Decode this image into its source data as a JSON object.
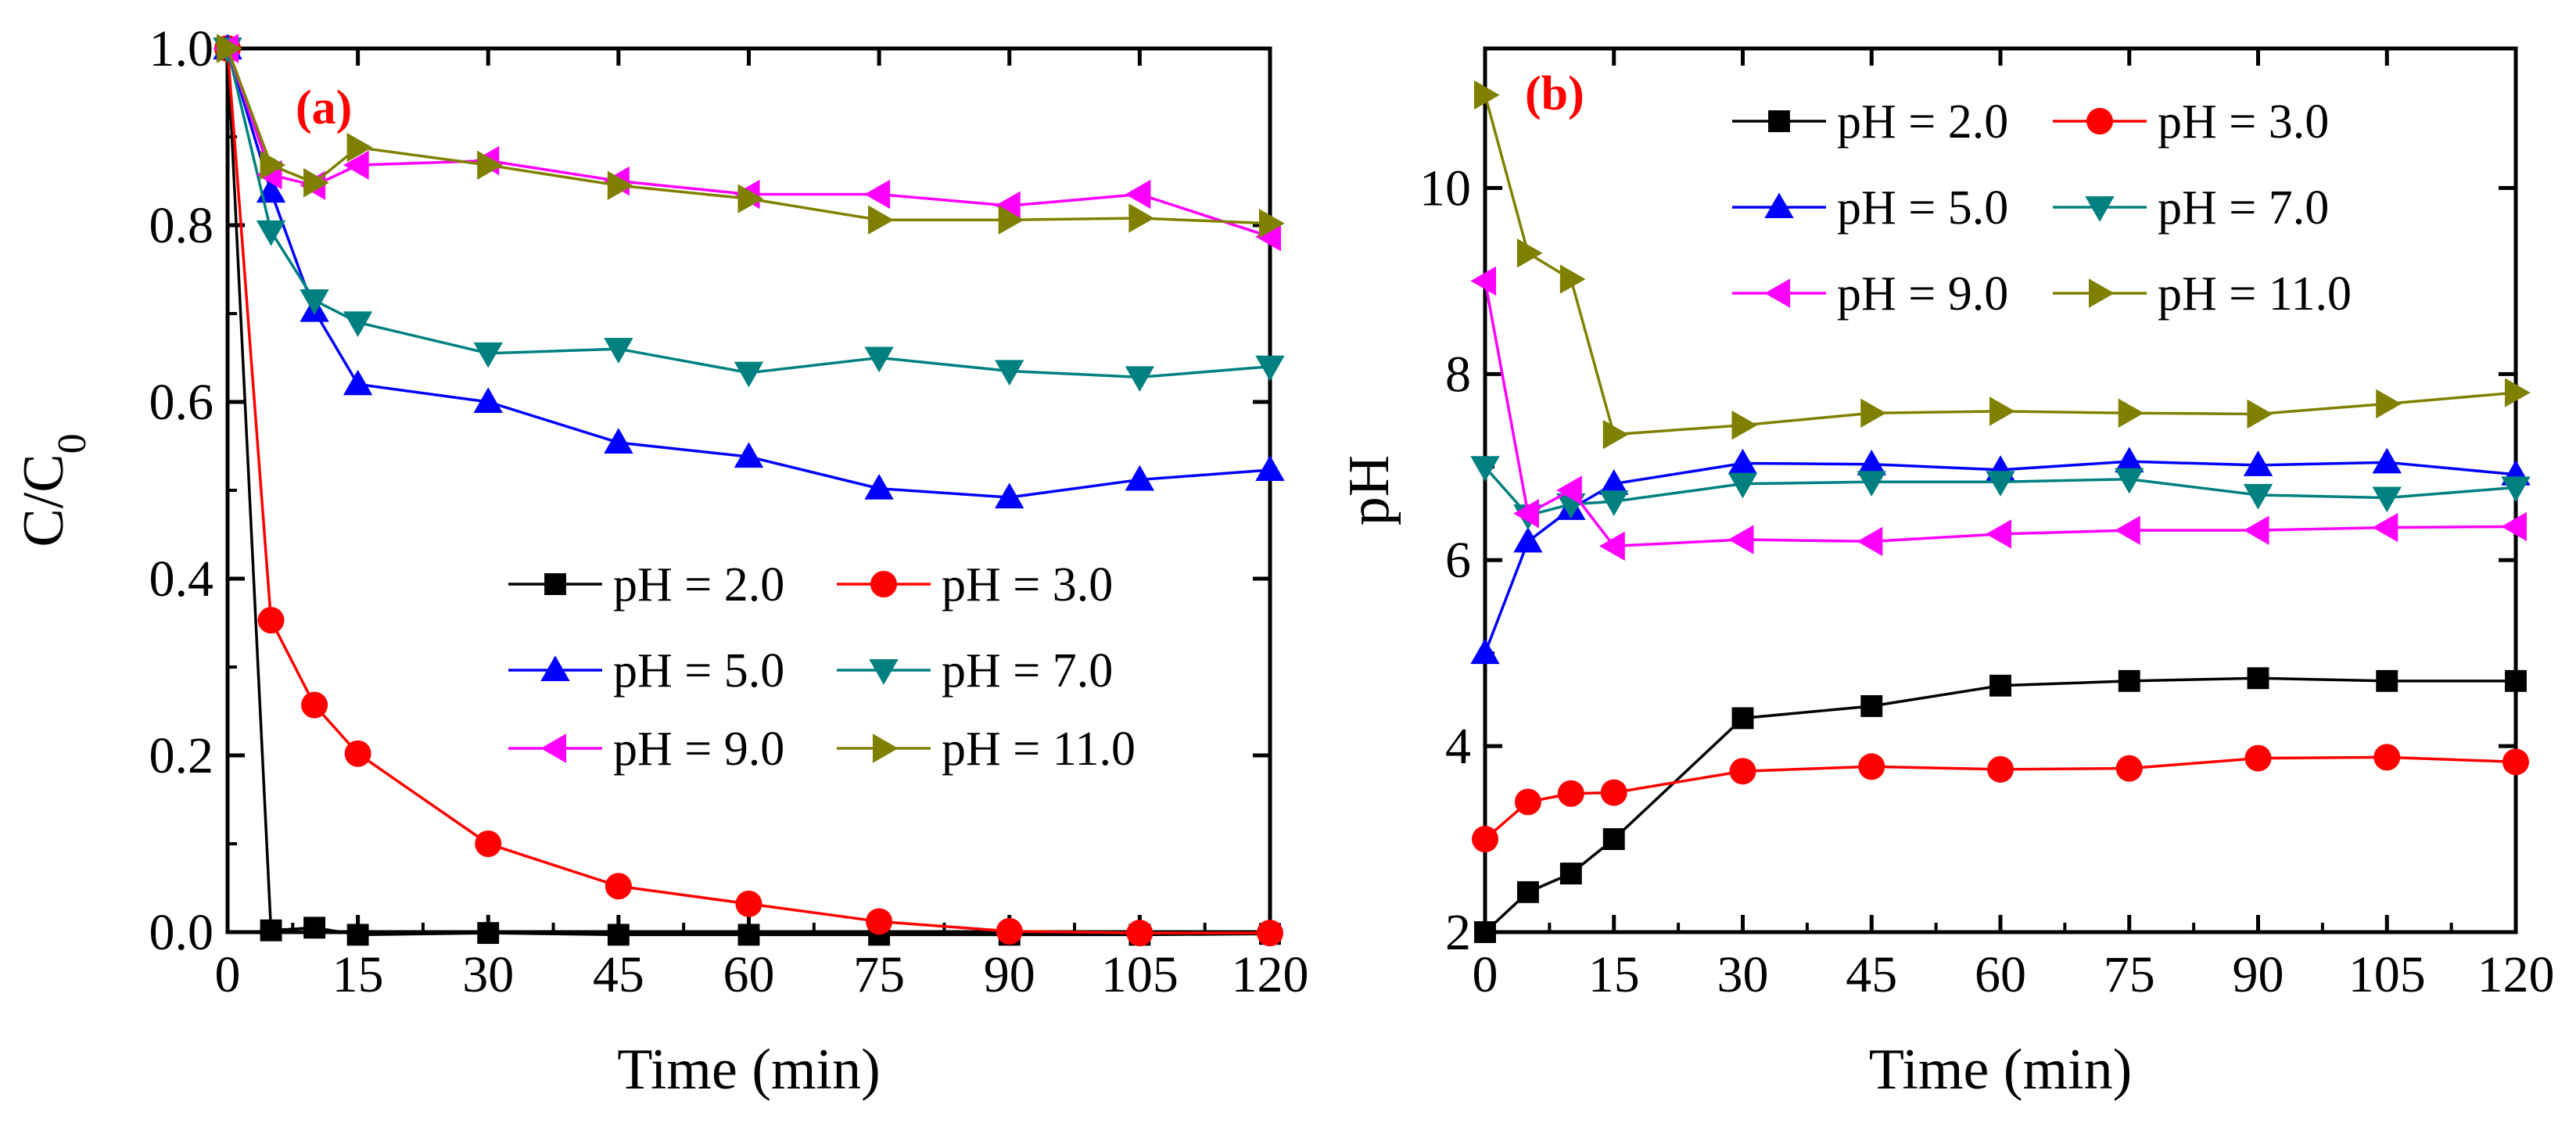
{
  "figure": {
    "description_none": ""
  },
  "chart_data": [
    {
      "type": "line",
      "panel_label": "(a)",
      "xlabel": "Time (min)",
      "ylabel": {
        "base": "C/C",
        "subscript": "0"
      },
      "xlim": [
        0,
        120
      ],
      "ylim": [
        0,
        1.0
      ],
      "xticks": [
        0,
        15,
        30,
        45,
        60,
        75,
        90,
        105,
        120
      ],
      "xtick_labels": [
        "0",
        "15",
        "30",
        "45",
        "60",
        "75",
        "90",
        "105",
        "120"
      ],
      "yticks": [
        0,
        0.2,
        0.4,
        0.6,
        0.8,
        1.0
      ],
      "ytick_labels": [
        "0.0",
        "0.2",
        "0.4",
        "0.6",
        "0.8",
        "1.0"
      ],
      "legend_placement": "lower-right",
      "x": [
        0,
        5,
        10,
        15,
        30,
        45,
        60,
        75,
        90,
        105,
        120
      ],
      "series": [
        {
          "name": "pH = 2.0",
          "color": "#000000",
          "marker": "square",
          "values": [
            1.0,
            0.002,
            0.005,
            -0.003,
            -0.001,
            -0.003,
            -0.003,
            -0.003,
            -0.003,
            -0.003,
            -0.002
          ]
        },
        {
          "name": "pH = 3.0",
          "color": "#ff0000",
          "marker": "circle",
          "values": [
            1.0,
            0.353,
            0.257,
            0.202,
            0.1,
            0.052,
            0.032,
            0.012,
            0.001,
            -0.001,
            -0.001
          ]
        },
        {
          "name": "pH = 5.0",
          "color": "#0000ff",
          "marker": "triangle-up",
          "values": [
            1.0,
            0.838,
            0.703,
            0.62,
            0.6,
            0.554,
            0.538,
            0.502,
            0.492,
            0.512,
            0.523
          ]
        },
        {
          "name": "pH = 7.0",
          "color": "#008080",
          "marker": "triangle-down",
          "values": [
            1.0,
            0.793,
            0.715,
            0.69,
            0.655,
            0.66,
            0.633,
            0.65,
            0.635,
            0.628,
            0.64
          ]
        },
        {
          "name": "pH = 9.0",
          "color": "#ff00ff",
          "marker": "triangle-left",
          "values": [
            1.0,
            0.857,
            0.845,
            0.868,
            0.873,
            0.85,
            0.835,
            0.835,
            0.822,
            0.835,
            0.787
          ]
        },
        {
          "name": "pH = 11.0",
          "color": "#808000",
          "marker": "triangle-right",
          "values": [
            1.0,
            0.868,
            0.848,
            0.888,
            0.868,
            0.845,
            0.83,
            0.806,
            0.806,
            0.808,
            0.802
          ]
        }
      ]
    },
    {
      "type": "line",
      "panel_label": "(b)",
      "xlabel": "Time (min)",
      "ylabel": {
        "base": "pH",
        "subscript": ""
      },
      "xlim": [
        0,
        120
      ],
      "ylim": [
        2,
        11.5
      ],
      "xticks": [
        0,
        15,
        30,
        45,
        60,
        75,
        90,
        105,
        120
      ],
      "xtick_labels": [
        "0",
        "15",
        "30",
        "45",
        "60",
        "75",
        "90",
        "105",
        "120"
      ],
      "yticks": [
        2,
        4,
        6,
        8,
        10
      ],
      "ytick_labels": [
        "2",
        "4",
        "6",
        "8",
        "10"
      ],
      "legend_placement": "top-right",
      "x": [
        0,
        5,
        10,
        15,
        30,
        45,
        60,
        75,
        90,
        105,
        120
      ],
      "series": [
        {
          "name": "pH = 2.0",
          "color": "#000000",
          "marker": "square",
          "values": [
            2.0,
            2.43,
            2.63,
            3.0,
            4.3,
            4.43,
            4.65,
            4.7,
            4.73,
            4.7,
            4.7
          ]
        },
        {
          "name": "pH = 3.0",
          "color": "#ff0000",
          "marker": "circle",
          "values": [
            3.0,
            3.4,
            3.49,
            3.5,
            3.73,
            3.78,
            3.75,
            3.76,
            3.87,
            3.88,
            3.83
          ]
        },
        {
          "name": "pH = 5.0",
          "color": "#0000ff",
          "marker": "triangle-up",
          "values": [
            5.0,
            6.2,
            6.55,
            6.82,
            7.04,
            7.03,
            6.97,
            7.06,
            7.02,
            7.05,
            6.92
          ]
        },
        {
          "name": "pH = 7.0",
          "color": "#008080",
          "marker": "triangle-down",
          "values": [
            7.0,
            6.48,
            6.6,
            6.63,
            6.82,
            6.84,
            6.84,
            6.87,
            6.7,
            6.67,
            6.78
          ]
        },
        {
          "name": "pH = 9.0",
          "color": "#ff00ff",
          "marker": "triangle-left",
          "values": [
            9.0,
            6.5,
            6.75,
            6.15,
            6.22,
            6.2,
            6.28,
            6.32,
            6.32,
            6.35,
            6.36
          ]
        },
        {
          "name": "pH = 11.0",
          "color": "#808000",
          "marker": "triangle-right",
          "values": [
            11.0,
            9.3,
            9.02,
            7.35,
            7.45,
            7.58,
            7.6,
            7.58,
            7.57,
            7.68,
            7.8
          ]
        }
      ]
    }
  ]
}
